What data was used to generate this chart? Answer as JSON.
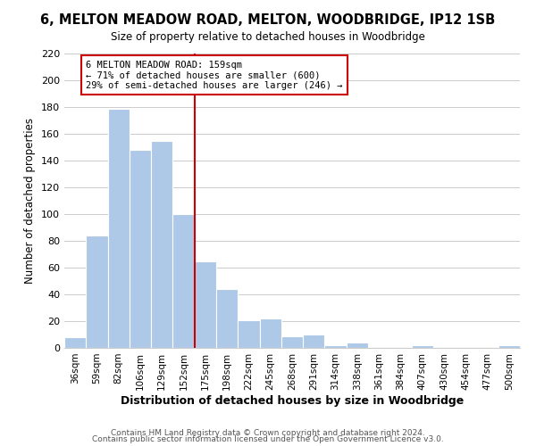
{
  "title": "6, MELTON MEADOW ROAD, MELTON, WOODBRIDGE, IP12 1SB",
  "subtitle": "Size of property relative to detached houses in Woodbridge",
  "xlabel": "Distribution of detached houses by size in Woodbridge",
  "ylabel": "Number of detached properties",
  "bar_labels": [
    "36sqm",
    "59sqm",
    "82sqm",
    "106sqm",
    "129sqm",
    "152sqm",
    "175sqm",
    "198sqm",
    "222sqm",
    "245sqm",
    "268sqm",
    "291sqm",
    "314sqm",
    "338sqm",
    "361sqm",
    "384sqm",
    "407sqm",
    "430sqm",
    "454sqm",
    "477sqm",
    "500sqm"
  ],
  "bar_values": [
    8,
    84,
    179,
    148,
    155,
    100,
    65,
    44,
    21,
    22,
    9,
    10,
    2,
    4,
    0,
    0,
    2,
    0,
    0,
    0,
    2
  ],
  "bar_color": "#aec9e8",
  "bar_edge_color": "#ffffff",
  "vline_x": 5.5,
  "vline_color": "#cc0000",
  "annotation_text": "6 MELTON MEADOW ROAD: 159sqm\n← 71% of detached houses are smaller (600)\n29% of semi-detached houses are larger (246) →",
  "annotation_box_color": "#ffffff",
  "annotation_box_edge_color": "#cc0000",
  "ylim": [
    0,
    220
  ],
  "yticks": [
    0,
    20,
    40,
    60,
    80,
    100,
    120,
    140,
    160,
    180,
    200,
    220
  ],
  "footer1": "Contains HM Land Registry data © Crown copyright and database right 2024.",
  "footer2": "Contains public sector information licensed under the Open Government Licence v3.0.",
  "background_color": "#ffffff",
  "grid_color": "#cccccc"
}
